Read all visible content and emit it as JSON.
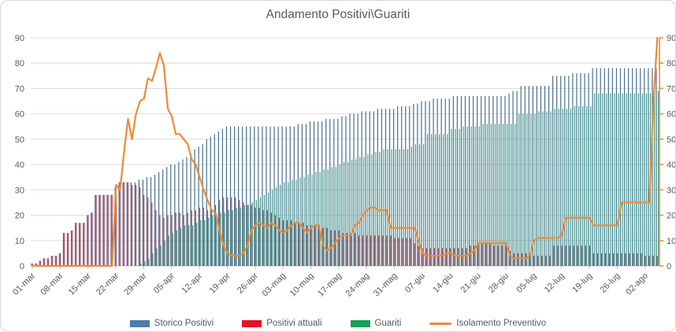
{
  "chart": {
    "title": "Andamento Positivi\\Guariti"
  },
  "legend": {
    "items": [
      {
        "label": "Storico Positivi",
        "type": "bar",
        "color": "#4e7cab"
      },
      {
        "label": "Positivi attuali",
        "type": "bar",
        "color": "#e81123"
      },
      {
        "label": "Guariti",
        "type": "bar",
        "color": "#18a159"
      },
      {
        "label": "Isolamento Preventivo",
        "type": "line",
        "color": "#ed8c36"
      }
    ]
  },
  "chart_data": {
    "type": "combo",
    "title": "Andamento Positivi\\Guariti",
    "days": 158,
    "tick_every": 7,
    "tick_labels": [
      "01-mar",
      "08-mar",
      "15-mar",
      "22-mar",
      "29-mar",
      "05-apr",
      "12-apr",
      "19-apr",
      "26-apr",
      "03-mag",
      "10-mag",
      "17-mag",
      "24-mag",
      "31-mag",
      "07-giu",
      "14-giu",
      "21-giu",
      "28-giu",
      "05-lug",
      "12-lug",
      "19-lug",
      "26-lug",
      "02-ago"
    ],
    "y_axis": {
      "min": 0,
      "max": 90,
      "step": 10,
      "left_labels": [
        "0",
        "10",
        "20",
        "30",
        "40",
        "50",
        "60",
        "70",
        "80",
        "90"
      ],
      "right_labels": [
        "0",
        "10",
        "20",
        "30",
        "40",
        "50",
        "60",
        "70",
        "80",
        "90"
      ]
    },
    "grid": true,
    "legend_position": "bottom",
    "colors": {
      "grid": "#dcdcdc",
      "axis_text": "#595959",
      "x_axis_line": "#c6c6c6",
      "right_axis": "#ed8c36"
    },
    "series": [
      {
        "name": "Storico Positivi",
        "type": "bar",
        "color": "#48708f",
        "values": [
          1,
          1,
          2,
          3,
          3,
          4,
          4,
          5,
          13,
          13,
          14,
          17,
          17,
          17,
          20,
          21,
          28,
          28,
          28,
          28,
          28,
          31,
          33,
          33,
          33,
          33,
          33,
          34,
          34,
          35,
          35,
          36,
          37,
          38,
          39,
          40,
          40,
          41,
          42,
          43,
          44,
          46,
          47,
          48,
          50,
          51,
          52,
          53,
          54,
          55,
          55,
          55,
          55,
          55,
          55,
          55,
          55,
          55,
          55,
          55,
          55,
          55,
          55,
          55,
          55,
          55,
          55,
          56,
          56,
          56,
          57,
          57,
          57,
          57,
          58,
          58,
          58,
          58,
          59,
          59,
          60,
          60,
          60,
          61,
          61,
          61,
          61,
          62,
          62,
          62,
          62,
          62,
          63,
          63,
          63,
          63,
          64,
          64,
          65,
          65,
          65,
          66,
          66,
          66,
          66,
          66,
          67,
          67,
          67,
          67,
          67,
          67,
          67,
          67,
          67,
          67,
          67,
          67,
          67,
          67,
          68,
          69,
          69,
          71,
          71,
          71,
          71,
          71,
          71,
          71,
          71,
          75,
          75,
          75,
          75,
          75,
          76,
          76,
          76,
          76,
          76,
          78,
          78,
          78,
          78,
          78,
          78,
          78,
          78,
          78,
          78,
          78,
          78,
          78,
          78,
          78,
          78,
          78
        ]
      },
      {
        "name": "Positivi attuali",
        "type": "bar",
        "color": "#ab4a5e",
        "values": [
          1,
          1,
          2,
          3,
          3,
          4,
          4,
          5,
          13,
          13,
          14,
          17,
          17,
          17,
          20,
          21,
          28,
          28,
          28,
          28,
          28,
          31,
          33,
          33,
          33,
          32,
          32,
          31,
          28,
          27,
          25,
          22,
          20,
          19,
          20,
          20,
          21,
          21,
          20,
          21,
          22,
          22,
          23,
          23,
          22,
          22,
          24,
          26,
          27,
          27,
          27,
          27,
          26,
          25,
          24,
          24,
          23,
          23,
          22,
          22,
          21,
          20,
          19,
          18,
          18,
          18,
          17,
          17,
          17,
          16,
          16,
          16,
          15,
          15,
          15,
          14,
          14,
          14,
          13,
          13,
          13,
          13,
          12,
          12,
          12,
          12,
          12,
          12,
          12,
          12,
          12,
          11,
          11,
          11,
          11,
          11,
          9,
          8,
          7,
          7,
          7,
          7,
          7,
          7,
          7,
          7,
          7,
          7,
          7,
          7,
          8,
          8,
          9,
          9,
          9,
          9,
          8,
          8,
          8,
          8,
          6,
          5,
          5,
          5,
          5,
          4,
          4,
          4,
          4,
          4,
          4,
          8,
          8,
          8,
          8,
          8,
          8,
          8,
          8,
          8,
          8,
          5,
          5,
          5,
          5,
          5,
          5,
          5,
          5,
          5,
          5,
          5,
          5,
          5,
          4,
          4,
          4,
          4
        ]
      },
      {
        "name": "Guariti",
        "type": "bar",
        "color": "#38a28c",
        "values": [
          0,
          0,
          0,
          0,
          0,
          0,
          0,
          0,
          0,
          0,
          0,
          0,
          0,
          0,
          0,
          0,
          0,
          0,
          0,
          0,
          0,
          0,
          0,
          0,
          0,
          0,
          0,
          1,
          2,
          3,
          5,
          7,
          8,
          10,
          12,
          13,
          14,
          15,
          16,
          16,
          16,
          17,
          18,
          18,
          19,
          20,
          20,
          21,
          21,
          22,
          22,
          23,
          23,
          24,
          24,
          25,
          26,
          27,
          28,
          29,
          30,
          31,
          32,
          33,
          33,
          34,
          34,
          35,
          35,
          36,
          36,
          37,
          37,
          38,
          38,
          39,
          39,
          40,
          41,
          41,
          42,
          42,
          43,
          43,
          44,
          44,
          45,
          45,
          46,
          46,
          46,
          46,
          46,
          46,
          46,
          47,
          48,
          48,
          48,
          52,
          52,
          52,
          52,
          52,
          52,
          54,
          54,
          54,
          55,
          55,
          55,
          55,
          55,
          56,
          56,
          56,
          56,
          56,
          56,
          56,
          56,
          56,
          60,
          60,
          60,
          60,
          60,
          61,
          61,
          61,
          61,
          62,
          62,
          62,
          62,
          62,
          63,
          63,
          63,
          63,
          63,
          68,
          68,
          68,
          68,
          68,
          68,
          68,
          68,
          68,
          68,
          68,
          68,
          68,
          68,
          68,
          69,
          69
        ]
      },
      {
        "name": "Isolamento Preventivo",
        "type": "line",
        "color": "#ed8c36",
        "values": [
          0,
          0,
          0,
          0,
          0,
          0,
          0,
          0,
          0,
          0,
          0,
          0,
          0,
          0,
          0,
          0,
          0,
          0,
          0,
          0,
          0,
          32,
          30,
          45,
          58,
          50,
          60,
          65,
          66,
          74,
          73,
          78,
          84,
          79,
          62,
          59,
          52,
          52,
          50,
          48,
          42,
          40,
          35,
          30,
          26,
          22,
          21,
          14,
          8,
          5,
          4,
          4,
          4,
          5,
          8,
          14,
          16,
          17,
          16,
          15,
          17,
          16,
          14,
          13,
          14,
          16,
          17,
          17,
          15,
          13,
          15,
          16,
          16,
          8,
          6,
          7,
          9,
          11,
          12,
          12,
          12,
          16,
          17,
          20,
          22,
          23,
          23,
          22,
          22,
          22,
          15,
          15,
          15,
          15,
          15,
          15,
          15,
          10,
          5,
          4,
          4,
          4,
          4,
          4,
          5,
          5,
          4,
          4,
          4,
          4,
          5,
          6,
          9,
          9,
          9,
          9,
          9,
          9,
          9,
          9,
          4,
          3,
          3,
          3,
          3,
          4,
          10,
          11,
          11,
          11,
          11,
          11,
          11,
          12,
          19,
          19,
          19,
          19,
          19,
          19,
          19,
          16,
          16,
          16,
          16,
          16,
          16,
          16,
          25,
          25,
          25,
          25,
          25,
          25,
          25,
          25,
          64,
          90
        ]
      }
    ]
  }
}
